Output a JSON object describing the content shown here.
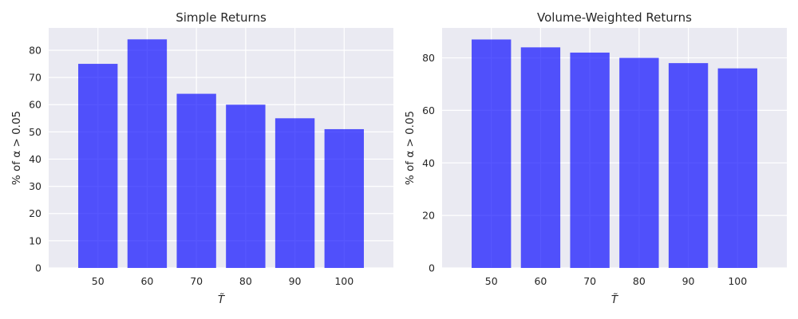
{
  "chart_data": [
    {
      "type": "bar",
      "title": "Simple Returns",
      "xlabel": "T̃",
      "ylabel": "% of α > 0.05",
      "categories": [
        "50",
        "60",
        "70",
        "80",
        "90",
        "100"
      ],
      "values": [
        75,
        84,
        64,
        60,
        55,
        51
      ],
      "ylim": [
        0,
        88.2
      ],
      "yticks": [
        0,
        10,
        20,
        30,
        40,
        50,
        60,
        70,
        80
      ],
      "grid": true,
      "color": "#0000ff"
    },
    {
      "type": "bar",
      "title": "Volume-Weighted Returns",
      "xlabel": "T̃",
      "ylabel": "% of α > 0.05",
      "categories": [
        "50",
        "60",
        "70",
        "80",
        "90",
        "100"
      ],
      "values": [
        87,
        84,
        82,
        80,
        78,
        76
      ],
      "ylim": [
        0,
        91.4
      ],
      "yticks": [
        0,
        20,
        40,
        60,
        80
      ],
      "grid": true,
      "color": "#0000ff"
    }
  ]
}
